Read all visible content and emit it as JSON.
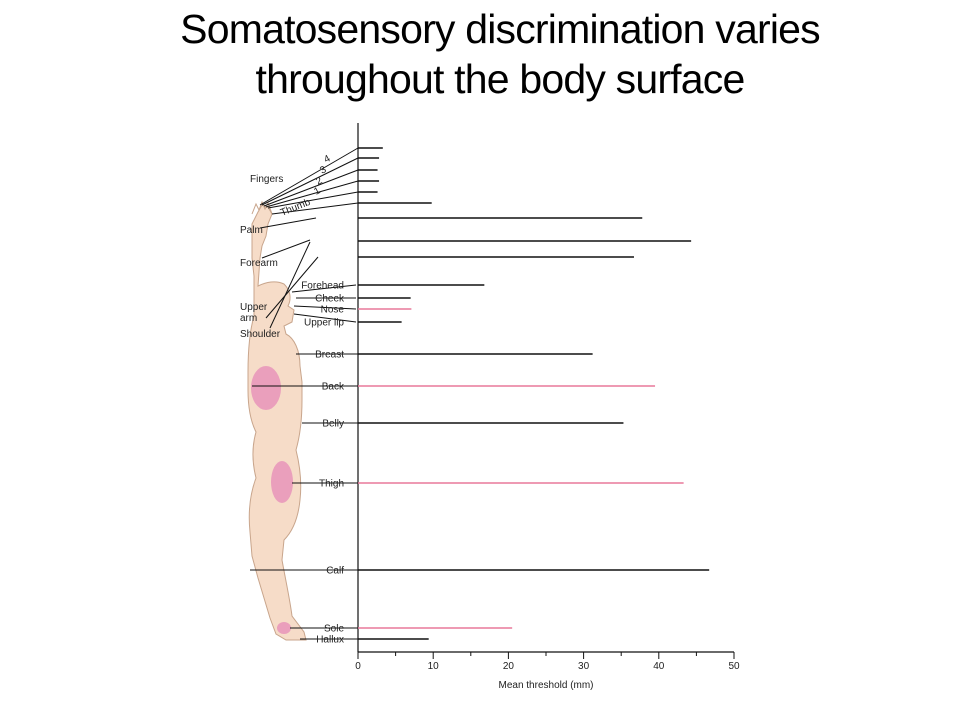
{
  "slide": {
    "title_line1": "Somatosensory discrimination varies",
    "title_line2": "throughout the body surface"
  },
  "figure_labels": {
    "fingers": "Fingers",
    "palm": "Palm",
    "forearm": "Forearm",
    "upper_arm_line1": "Upper",
    "upper_arm_line2": "arm",
    "shoulder": "Shoulder"
  },
  "colors": {
    "black_bar": "#111111",
    "pink_bar": "#e8799a",
    "skin": "#f6dcc8",
    "skin_outline": "#c8a58c",
    "receptive_patch": "#ea9fbc"
  },
  "chart_data": {
    "type": "bar",
    "orientation": "horizontal",
    "xlabel": "Mean threshold (mm)",
    "xlim": [
      0,
      50
    ],
    "xticks": [
      0,
      10,
      20,
      30,
      40,
      50
    ],
    "grid": false,
    "categories": [
      "4",
      "3",
      "2",
      "1",
      "Thumb",
      "Palm",
      "Forearm",
      "Upper arm",
      "Forehead",
      "Cheek",
      "Nose",
      "Upper lip",
      "Breast",
      "Back",
      "Belly",
      "Thigh",
      "Calf",
      "Sole",
      "Hallux"
    ],
    "bars": [
      {
        "label": "4",
        "value": 3.3,
        "color": "black"
      },
      {
        "label": "3",
        "value": 2.8,
        "color": "black"
      },
      {
        "label": "2",
        "value": 2.6,
        "color": "black"
      },
      {
        "label": "1",
        "value": 2.8,
        "color": "black"
      },
      {
        "label": "Thumb",
        "value": 2.6,
        "color": "black"
      },
      {
        "label": "",
        "value": 9.8,
        "color": "black"
      },
      {
        "label": "Palm",
        "value": 37.8,
        "color": "black"
      },
      {
        "label": "Forearm",
        "value": 44.3,
        "color": "black"
      },
      {
        "label": "Upper arm",
        "value": 36.7,
        "color": "black"
      },
      {
        "label": "Forehead",
        "value": 16.8,
        "color": "black"
      },
      {
        "label": "Cheek",
        "value": 7.0,
        "color": "black"
      },
      {
        "label": "Nose",
        "value": 7.1,
        "color": "pink"
      },
      {
        "label": "Upper lip",
        "value": 5.8,
        "color": "black"
      },
      {
        "label": "Breast",
        "value": 31.2,
        "color": "black"
      },
      {
        "label": "Back",
        "value": 39.5,
        "color": "pink"
      },
      {
        "label": "Belly",
        "value": 35.3,
        "color": "black"
      },
      {
        "label": "Thigh",
        "value": 43.3,
        "color": "pink"
      },
      {
        "label": "Calf",
        "value": 46.7,
        "color": "black"
      },
      {
        "label": "Sole",
        "value": 20.5,
        "color": "pink"
      },
      {
        "label": "Hallux",
        "value": 9.4,
        "color": "black"
      }
    ]
  }
}
